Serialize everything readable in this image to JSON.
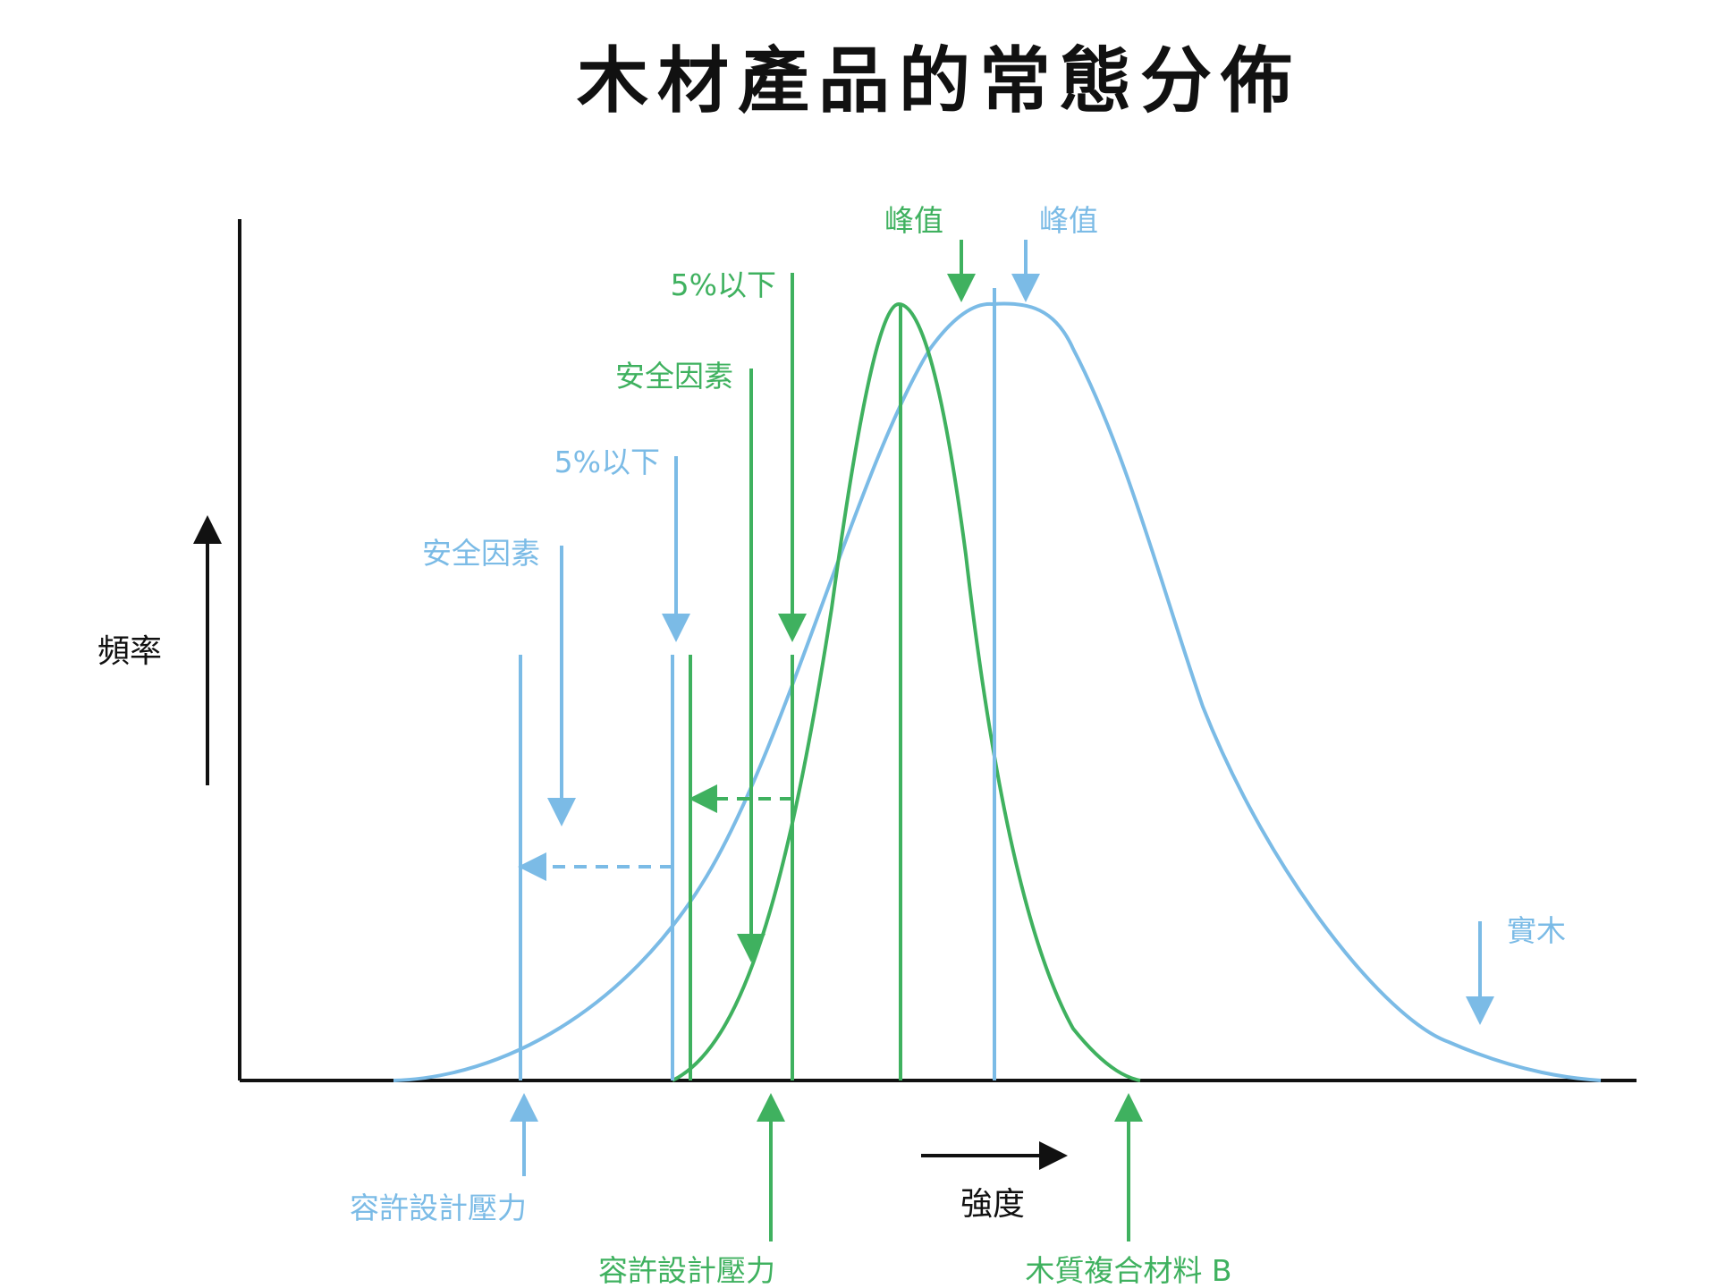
{
  "title": "木材產品的常態分佈",
  "axes": {
    "y_label": "頻率",
    "x_label": "強度"
  },
  "colors": {
    "solid_wood": "#7bbbe6",
    "composite": "#3fb15f",
    "axis": "#111111"
  },
  "labels": {
    "blue_peak": "峰值",
    "green_peak": "峰值",
    "blue_5pct": "5%以下",
    "green_5pct": "5%以下",
    "blue_safety": "安全因素",
    "green_safety": "安全因素",
    "blue_allowable": "容許設計壓力",
    "green_allowable": "容許設計壓力",
    "solid_wood": "實木",
    "composite": "木質複合材料 B"
  }
}
